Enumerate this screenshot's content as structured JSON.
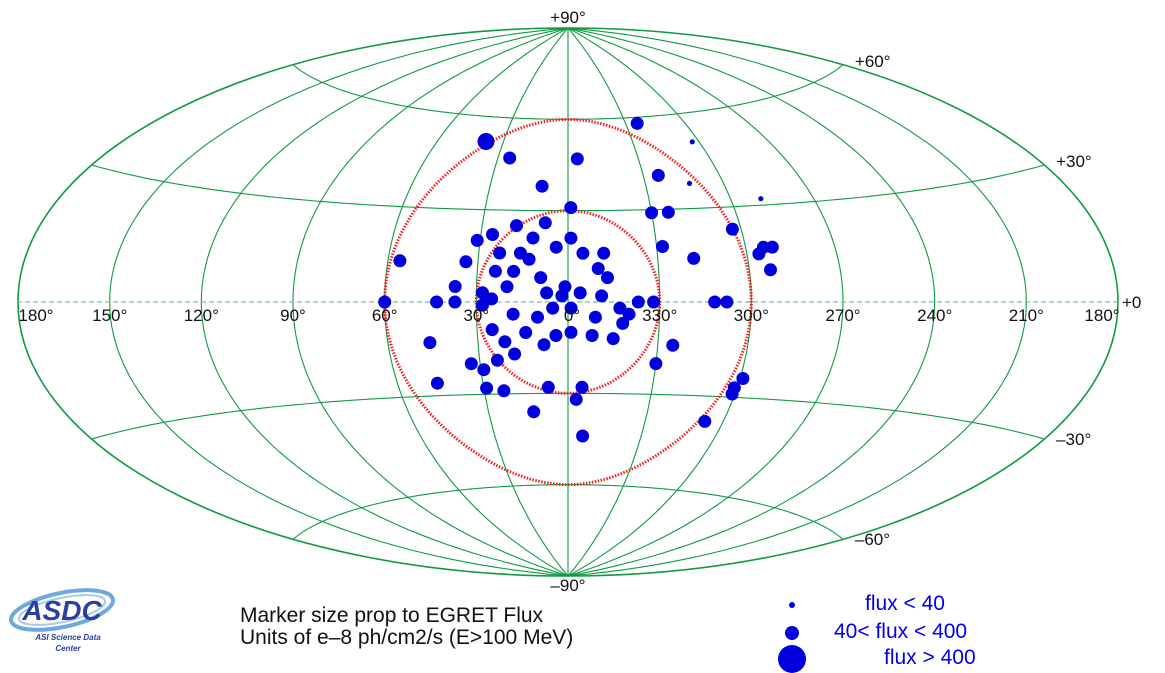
{
  "map": {
    "latitude_labels": [
      {
        "lat": 90,
        "text": "+90°"
      },
      {
        "lat": 60,
        "text": "+60°"
      },
      {
        "lat": 30,
        "text": "+30°"
      },
      {
        "lat": -30,
        "text": "–30°"
      },
      {
        "lat": -60,
        "text": "–60°"
      },
      {
        "lat": -90,
        "text": "–90°"
      }
    ],
    "longitude_labels": [
      {
        "lon": 180,
        "text": "180°"
      },
      {
        "lon": 150,
        "text": "150°"
      },
      {
        "lon": 120,
        "text": "120°"
      },
      {
        "lon": 90,
        "text": "90°"
      },
      {
        "lon": 60,
        "text": "60°"
      },
      {
        "lon": 30,
        "text": "30°"
      },
      {
        "lon": 0,
        "text": "0°"
      },
      {
        "lon": -30,
        "text": "330°"
      },
      {
        "lon": -60,
        "text": "300°"
      },
      {
        "lon": -90,
        "text": "270°"
      },
      {
        "lon": -120,
        "text": "240°"
      },
      {
        "lon": -150,
        "text": "210°"
      },
      {
        "lon": -180,
        "text": "180°"
      }
    ],
    "right_edge_label": "+0",
    "grid_color": "#119944",
    "circle_color": "#ee2222",
    "marker_color": "#0000dd",
    "circles": [
      {
        "radius_deg": 30
      },
      {
        "radius_deg": 60
      }
    ],
    "sources": [
      {
        "lon": 38,
        "lat": 52,
        "flux": 500
      },
      {
        "lon": 25,
        "lat": 47,
        "flux": 300
      },
      {
        "lon": -4,
        "lat": 47,
        "flux": 300
      },
      {
        "lon": -36,
        "lat": 58,
        "flux": 320
      },
      {
        "lon": -57,
        "lat": 51,
        "flux": 30
      },
      {
        "lon": -36,
        "lat": 41,
        "flux": 40
      },
      {
        "lon": -47,
        "lat": 38,
        "flux": 30
      },
      {
        "lon": 10,
        "lat": 38,
        "flux": 300
      },
      {
        "lon": -1,
        "lat": 31,
        "flux": 150
      },
      {
        "lon": -30,
        "lat": 29,
        "flux": 300
      },
      {
        "lon": -36,
        "lat": 29,
        "flux": 50
      },
      {
        "lon": -71,
        "lat": 32,
        "flux": 30
      },
      {
        "lon": -57,
        "lat": 23,
        "flux": 40
      },
      {
        "lon": 18,
        "lat": 25,
        "flux": 350
      },
      {
        "lon": 8,
        "lat": 26,
        "flux": 300
      },
      {
        "lon": 26,
        "lat": 22,
        "flux": 200
      },
      {
        "lon": 31,
        "lat": 20,
        "flux": 40
      },
      {
        "lon": 12,
        "lat": 21,
        "flux": 250
      },
      {
        "lon": 23,
        "lat": 16,
        "flux": 300
      },
      {
        "lon": 16,
        "lat": 16,
        "flux": 250
      },
      {
        "lon": 4,
        "lat": 18,
        "flux": 300
      },
      {
        "lon": -1,
        "lat": 21,
        "flux": 350
      },
      {
        "lon": -5,
        "lat": 16,
        "flux": 300
      },
      {
        "lon": -12,
        "lat": 16,
        "flux": 350
      },
      {
        "lon": -10,
        "lat": 11,
        "flux": 300
      },
      {
        "lon": -13,
        "lat": 8,
        "flux": 350
      },
      {
        "lon": -32,
        "lat": 18,
        "flux": 300
      },
      {
        "lon": -42,
        "lat": 14,
        "flux": 40
      },
      {
        "lon": -64,
        "lat": 15,
        "flux": 40
      },
      {
        "lon": -66,
        "lat": 17,
        "flux": 40
      },
      {
        "lon": -69,
        "lat": 17,
        "flux": 350
      },
      {
        "lon": -67,
        "lat": 10,
        "flux": 350
      },
      {
        "lon": 56,
        "lat": 13,
        "flux": 300
      },
      {
        "lon": 34,
        "lat": 13,
        "flux": 300
      },
      {
        "lon": 24,
        "lat": 10,
        "flux": 250
      },
      {
        "lon": 18,
        "lat": 10,
        "flux": 300
      },
      {
        "lon": 9,
        "lat": 8,
        "flux": 300
      },
      {
        "lon": 13,
        "lat": 14,
        "flux": 250
      },
      {
        "lon": 37,
        "lat": 5,
        "flux": 250
      },
      {
        "lon": 20,
        "lat": 5,
        "flux": 300
      },
      {
        "lon": 28,
        "lat": 3,
        "flux": 250
      },
      {
        "lon": 25,
        "lat": 1,
        "flux": 300
      },
      {
        "lon": 7,
        "lat": 3,
        "flux": 250
      },
      {
        "lon": 1,
        "lat": 5,
        "flux": 300
      },
      {
        "lon": 2,
        "lat": 2,
        "flux": 200
      },
      {
        "lon": -4,
        "lat": 3,
        "flux": 300
      },
      {
        "lon": -11,
        "lat": 2,
        "flux": 300
      },
      {
        "lon": -23,
        "lat": 0,
        "flux": 300
      },
      {
        "lon": -28,
        "lat": 0,
        "flux": 300
      },
      {
        "lon": -48,
        "lat": 0,
        "flux": 300
      },
      {
        "lon": -52,
        "lat": 0,
        "flux": 250
      },
      {
        "lon": 60,
        "lat": 0,
        "flux": 300
      },
      {
        "lon": 43,
        "lat": 0,
        "flux": 300
      },
      {
        "lon": 37,
        "lat": 0,
        "flux": 250
      },
      {
        "lon": 28,
        "lat": -1,
        "flux": 250
      },
      {
        "lon": 5,
        "lat": -2,
        "flux": 200
      },
      {
        "lon": -1,
        "lat": -2,
        "flux": 250
      },
      {
        "lon": -17,
        "lat": -2,
        "flux": 300
      },
      {
        "lon": -20,
        "lat": -4,
        "flux": 300
      },
      {
        "lon": 18,
        "lat": -4,
        "flux": 300
      },
      {
        "lon": 10,
        "lat": -5,
        "flux": 250
      },
      {
        "lon": -9,
        "lat": -5,
        "flux": 250
      },
      {
        "lon": -18,
        "lat": -7,
        "flux": 250
      },
      {
        "lon": 25,
        "lat": -9,
        "flux": 250
      },
      {
        "lon": 14,
        "lat": -10,
        "flux": 300
      },
      {
        "lon": 4,
        "lat": -11,
        "flux": 250
      },
      {
        "lon": -1,
        "lat": -10,
        "flux": 50
      },
      {
        "lon": -8,
        "lat": -11,
        "flux": 300
      },
      {
        "lon": -15,
        "lat": -12,
        "flux": 300
      },
      {
        "lon": 46,
        "lat": -13,
        "flux": 300
      },
      {
        "lon": 21,
        "lat": -13,
        "flux": 300
      },
      {
        "lon": 8,
        "lat": -14,
        "flux": 250
      },
      {
        "lon": -35,
        "lat": -14,
        "flux": 300
      },
      {
        "lon": 18,
        "lat": -17,
        "flux": 40
      },
      {
        "lon": 24,
        "lat": -19,
        "flux": 300
      },
      {
        "lon": 33,
        "lat": -20,
        "flux": 250
      },
      {
        "lon": -30,
        "lat": -20,
        "flux": 40
      },
      {
        "lon": 29,
        "lat": -22,
        "flux": 300
      },
      {
        "lon": -61,
        "lat": -24,
        "flux": 300
      },
      {
        "lon": -59,
        "lat": -27,
        "flux": 40
      },
      {
        "lon": 46,
        "lat": -26,
        "flux": 300
      },
      {
        "lon": 29,
        "lat": -28,
        "flux": 40
      },
      {
        "lon": 23,
        "lat": -29,
        "flux": 350
      },
      {
        "lon": -59,
        "lat": -29,
        "flux": 300
      },
      {
        "lon": 7,
        "lat": -28,
        "flux": 300
      },
      {
        "lon": -5,
        "lat": -28,
        "flux": 50
      },
      {
        "lon": -3,
        "lat": -32,
        "flux": 300
      },
      {
        "lon": 13,
        "lat": -36,
        "flux": 40
      },
      {
        "lon": -6,
        "lat": -44,
        "flux": 40
      },
      {
        "lon": -53,
        "lat": -38,
        "flux": 40
      }
    ]
  },
  "caption": {
    "line1": "Marker size prop to EGRET Flux",
    "line2": "Units of e–8 ph/cm2/s (E>100 MeV)"
  },
  "legend": [
    {
      "label": "flux < 40",
      "size": "small"
    },
    {
      "label": "40< flux < 400",
      "size": "medium"
    },
    {
      "label": "flux > 400",
      "size": "large"
    }
  ],
  "logo": {
    "text": "ASDC",
    "subtitle": "ASI Science Data Center",
    "colors": {
      "text": "#2a3fa0",
      "swoosh": "#6fa8dc"
    }
  }
}
